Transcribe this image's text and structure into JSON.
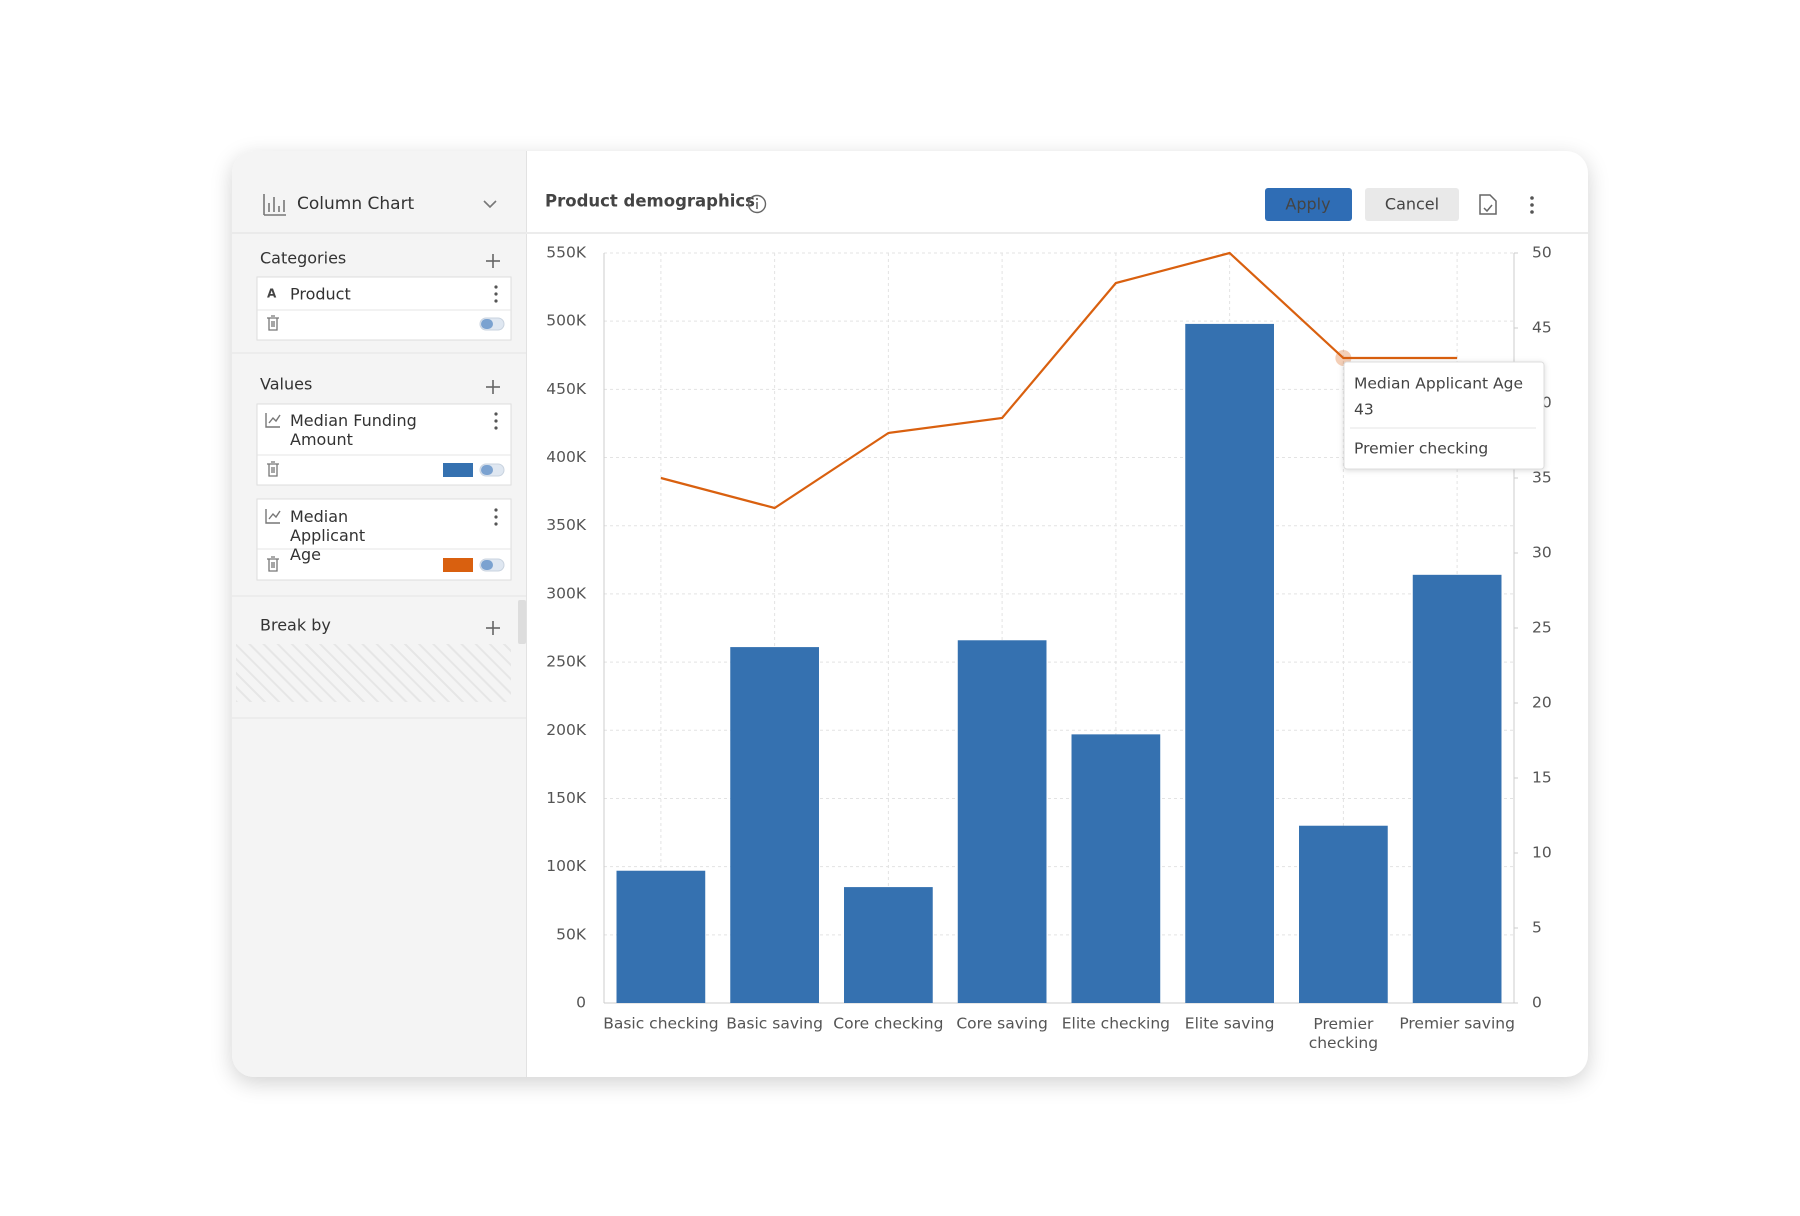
{
  "panel": {
    "chart_type": "Column Chart",
    "sections": [
      {
        "title": "Categories",
        "fields": [
          "Product"
        ]
      },
      {
        "title": "Values"
      },
      {
        "title": "Break by"
      }
    ]
  },
  "buttons": [
    "Apply",
    "Cancel"
  ],
  "chart_data": {
    "type": "bar",
    "title": "Product demographics",
    "categories": [
      "Basic checking",
      "Basic saving",
      "Core checking",
      "Core saving",
      "Elite checking",
      "Elite saving",
      "Premier checking",
      "Premier saving"
    ],
    "series": [
      {
        "name": "Median Funding Amount",
        "type": "bar",
        "color": "#3571b0",
        "values": [
          97000,
          261000,
          85000,
          266000,
          197000,
          498000,
          130000,
          314000
        ]
      },
      {
        "name": "Median Applicant Age",
        "type": "line",
        "axis": "y2",
        "color": "#d9600f",
        "values": [
          35,
          33,
          38,
          39,
          48,
          50,
          43,
          43
        ]
      }
    ],
    "ylim": [
      0,
      550000
    ],
    "yticks": [
      0,
      {
        "value": 50000,
        "label": "50K"
      },
      {
        "value": 100000,
        "label": "100K"
      },
      {
        "value": 150000,
        "label": "150K"
      },
      {
        "value": 200000,
        "label": "200K"
      },
      {
        "value": 250000,
        "label": "250K"
      },
      {
        "value": 300000,
        "label": "300K"
      },
      {
        "value": 350000,
        "label": "350K"
      },
      {
        "value": 400000,
        "label": "400K"
      },
      {
        "value": 450000,
        "label": "450K"
      },
      {
        "value": 500000,
        "label": "500K"
      },
      {
        "value": 550000,
        "label": "550K"
      }
    ],
    "y2lim": [
      0,
      50
    ],
    "y2ticks": [
      0,
      5,
      10,
      15,
      20,
      25,
      30,
      35,
      40,
      45,
      50
    ],
    "grid": true
  }
}
